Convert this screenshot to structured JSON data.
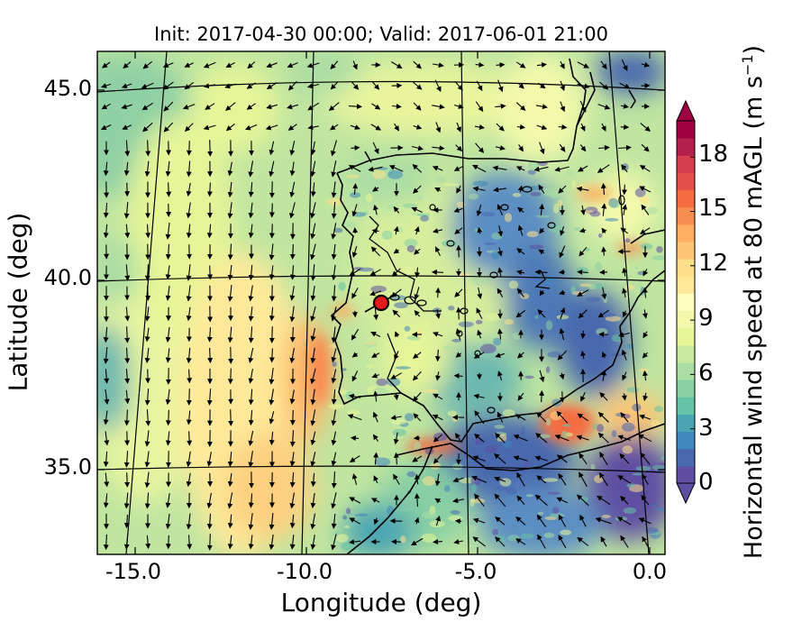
{
  "title": "Init: 2017-04-30 00:00; Valid: 2017-06-01 21:00",
  "xlabel": "Longitude (deg)",
  "ylabel": "Latitude (deg)",
  "colorbar": {
    "label_main": "Horizontal wind speed at 80 mAGL (m s",
    "label_sup": "−1",
    "label_end": ")",
    "ticks": [
      "0",
      "3",
      "6",
      "9",
      "12",
      "15",
      "18"
    ],
    "colors": [
      "#5e4fa2",
      "#4a68ae",
      "#3f87bc",
      "#4aa4b2",
      "#66c2a5",
      "#88cfa4",
      "#abdda4",
      "#cae9a0",
      "#e6f598",
      "#f3f9ab",
      "#fffebe",
      "#fee99a",
      "#fee08b",
      "#fdc575",
      "#fdae61",
      "#f88d51",
      "#f46d43",
      "#e25049",
      "#d53e4f",
      "#b4204c",
      "#9e0142"
    ]
  },
  "x_ticks": [
    "-15.0",
    "-10.0",
    "-5.0",
    "0.0"
  ],
  "y_ticks": [
    "45.0",
    "40.0",
    "35.0"
  ],
  "chart_data": {
    "type": "map",
    "title": "Init: 2017-04-30 00:00; Valid: 2017-06-01 21:00",
    "xlabel": "Longitude (deg)",
    "ylabel": "Latitude (deg)",
    "xlim": [
      -16.0,
      0.0
    ],
    "ylim": [
      33.0,
      46.0
    ],
    "meridians": [
      -15,
      -10,
      -5,
      0
    ],
    "parallels": [
      35,
      40,
      45
    ],
    "colorbar_range": [
      0,
      20
    ],
    "colorbar_extend": "both",
    "marker": {
      "lon": -7.6,
      "lat": 39.3,
      "color": "#e41a1c"
    },
    "field": "horizontal wind speed at 80 mAGL",
    "units": "m s-1"
  }
}
